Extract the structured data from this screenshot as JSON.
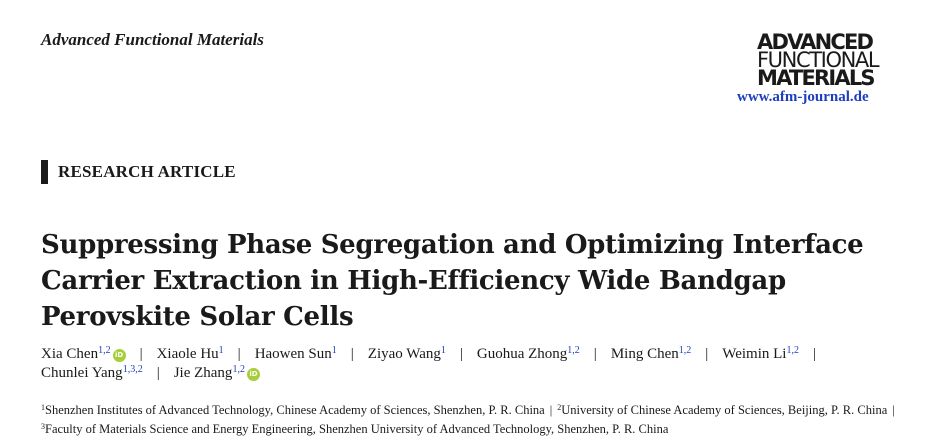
{
  "header": {
    "journal_name": "Advanced Functional Materials",
    "logo_lines": [
      "ADVANCED",
      "FUNCTIONAL",
      "MATERIALS"
    ],
    "url": "www.afm-journal.de",
    "url_color": "#1d3fbf"
  },
  "article": {
    "type": "RESEARCH ARTICLE",
    "title": "Suppressing Phase Segregation and Optimizing Interface Carrier Extraction in High-Efficiency Wide Bandgap Perovskite Solar Cells"
  },
  "authors": [
    {
      "name": "Xia Chen",
      "affil": "1,2",
      "orcid": true
    },
    {
      "name": "Xiaole Hu",
      "affil": "1",
      "orcid": false
    },
    {
      "name": "Haowen Sun",
      "affil": "1",
      "orcid": false
    },
    {
      "name": "Ziyao Wang",
      "affil": "1",
      "orcid": false
    },
    {
      "name": "Guohua Zhong",
      "affil": "1,2",
      "orcid": false
    },
    {
      "name": "Ming Chen",
      "affil": "1,2",
      "orcid": false
    },
    {
      "name": "Weimin Li",
      "affil": "1,2",
      "orcid": false
    },
    {
      "name": "Chunlei Yang",
      "affil": "1,3,2",
      "orcid": false
    },
    {
      "name": "Jie Zhang",
      "affil": "1,2",
      "orcid": true
    }
  ],
  "affiliations": [
    {
      "num": "1",
      "text": "Shenzhen Institutes of Advanced Technology, Chinese Academy of Sciences, Shenzhen, P. R. China"
    },
    {
      "num": "2",
      "text": "University of Chinese Academy of Sciences, Beijing, P. R. China"
    },
    {
      "num": "3",
      "text": "Faculty of Materials Science and Energy Engineering, Shenzhen University of Advanced Technology, Shenzhen, P. R. China"
    }
  ],
  "icons": {
    "orcid": "orcid-icon",
    "orcid_color": "#a6ce39",
    "orcid_glyph": "iD"
  },
  "separator": "|"
}
